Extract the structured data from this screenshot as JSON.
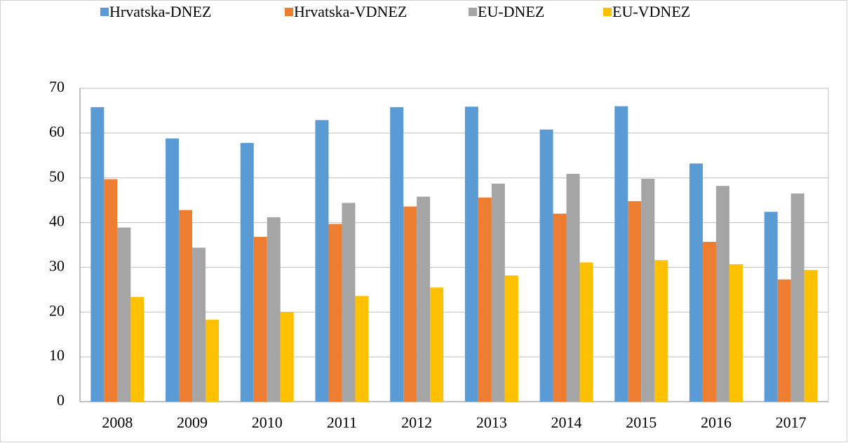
{
  "chart_data": {
    "type": "bar",
    "categories": [
      "2008",
      "2009",
      "2010",
      "2011",
      "2012",
      "2013",
      "2014",
      "2015",
      "2016",
      "2017"
    ],
    "series": [
      {
        "name": "Hrvatska-DNEZ",
        "color": "#5b9bd5",
        "values": [
          65.8,
          58.8,
          57.8,
          62.9,
          65.8,
          65.9,
          60.8,
          66.0,
          53.2,
          42.4
        ]
      },
      {
        "name": "Hrvatska-VDNEZ",
        "color": "#ed7d31",
        "values": [
          49.7,
          42.8,
          36.8,
          39.7,
          43.6,
          45.6,
          42.0,
          44.8,
          35.7,
          27.3
        ]
      },
      {
        "name": "EU-DNEZ",
        "color": "#a5a5a5",
        "values": [
          38.9,
          34.4,
          41.2,
          44.4,
          45.8,
          48.7,
          50.9,
          49.8,
          48.2,
          46.5
        ]
      },
      {
        "name": "EU-VDNEZ",
        "color": "#ffc000",
        "values": [
          23.4,
          18.3,
          20.0,
          23.6,
          25.5,
          28.2,
          31.1,
          31.6,
          30.7,
          29.4
        ]
      }
    ],
    "ylim": [
      0,
      70
    ],
    "yticks": [
      0,
      10,
      20,
      30,
      40,
      50,
      60,
      70
    ],
    "grid": true,
    "legend": "top"
  }
}
